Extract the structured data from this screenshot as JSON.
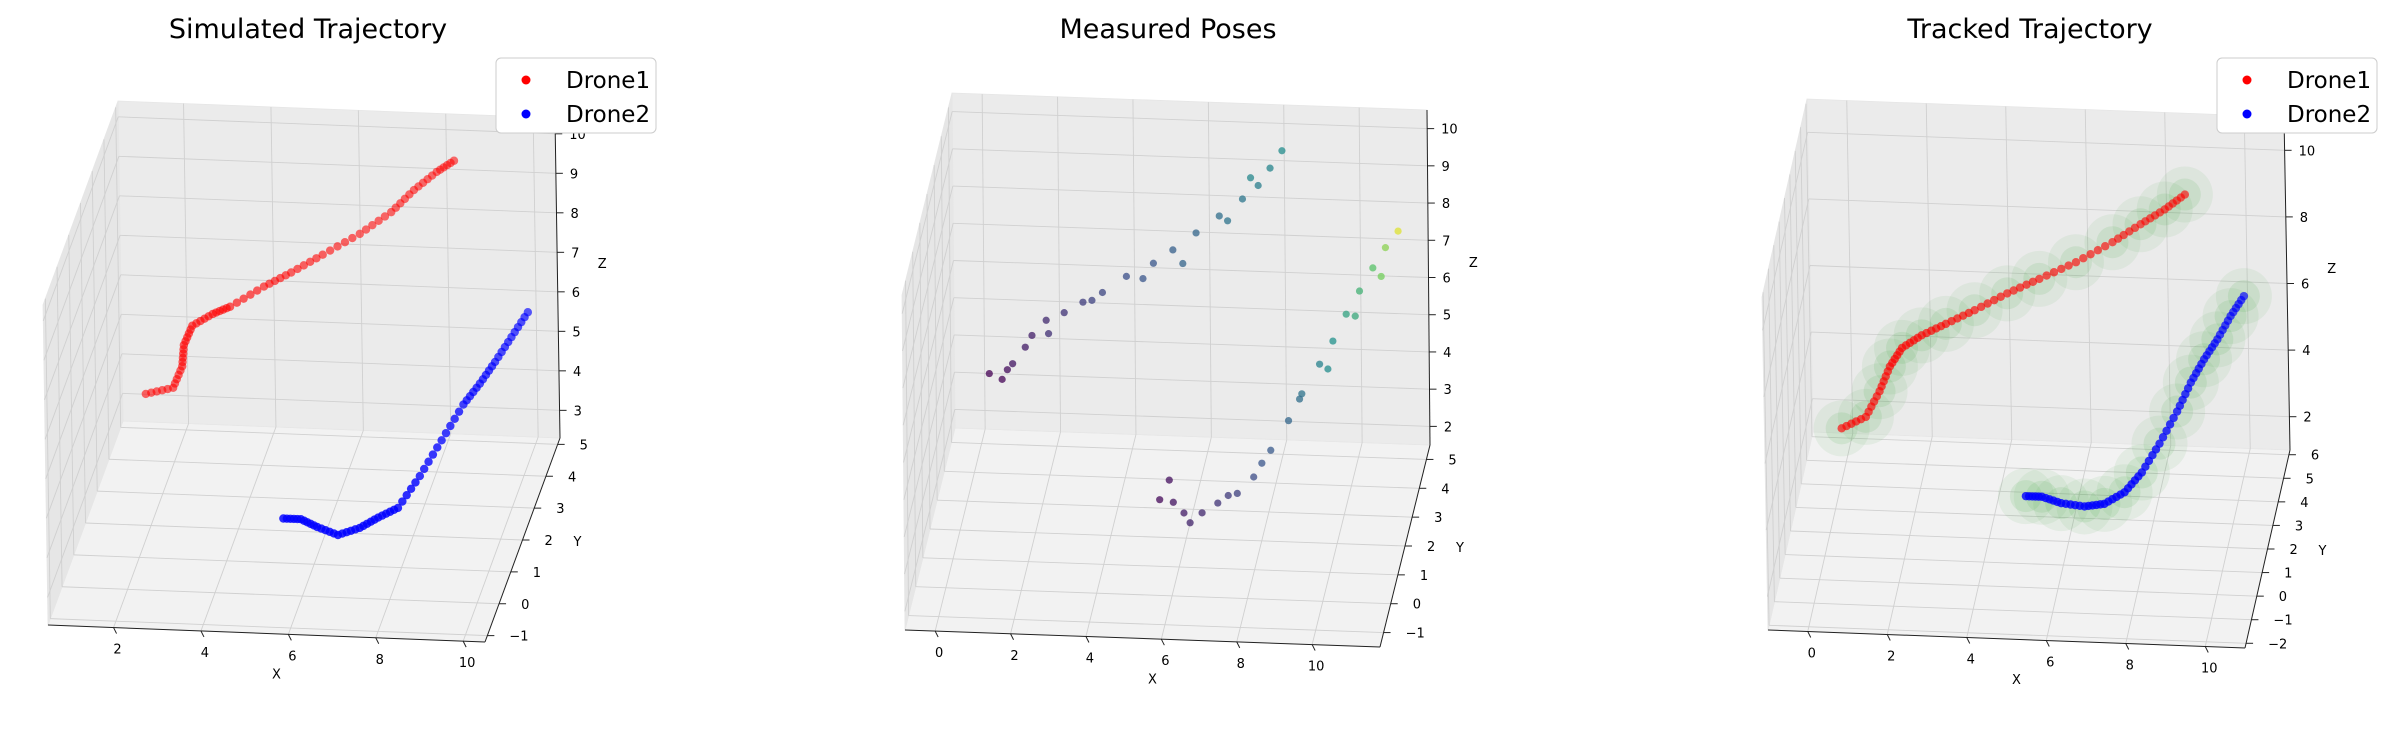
{
  "chart_data": [
    {
      "type": "scatter3d",
      "title": "Simulated Trajectory",
      "xlabel": "X",
      "ylabel": "Y",
      "zlabel": "Z",
      "xlim": [
        0.5,
        10.5
      ],
      "ylim": [
        -1.2,
        5.2
      ],
      "zlim": [
        2.3,
        10.4
      ],
      "xticks": [
        2,
        4,
        6,
        8,
        10
      ],
      "yticks": [
        -1,
        0,
        1,
        2,
        3,
        4,
        5
      ],
      "zticks": [
        3,
        4,
        5,
        6,
        7,
        8,
        9,
        10
      ],
      "legend_position": "top-right",
      "grid": true,
      "series": [
        {
          "name": "Drone1",
          "color": "#ff0000",
          "x": [
            1.2,
            1.8,
            2.1,
            2.2,
            2.4,
            2.9,
            3.3,
            4.0,
            4.6,
            5.3,
            6.1,
            6.8,
            7.3,
            7.8,
            8.2
          ],
          "y": [
            4.6,
            4.7,
            4.4,
            4.2,
            4.2,
            4.1,
            4.1,
            4.4,
            4.5,
            4.6,
            4.8,
            4.9,
            5.0,
            5.1,
            5.1
          ],
          "z": [
            3.5,
            3.6,
            4.4,
            5.1,
            5.6,
            6.0,
            6.2,
            6.5,
            6.8,
            7.2,
            7.6,
            8.1,
            8.6,
            9.0,
            9.3
          ]
        },
        {
          "name": "Drone2",
          "color": "#0000ff",
          "x": [
            5.2,
            5.6,
            6.0,
            6.5,
            7.0,
            7.4,
            7.8,
            8.2,
            8.6,
            9.0,
            9.3,
            9.6,
            9.9,
            10.2
          ],
          "y": [
            1.4,
            1.4,
            1.3,
            1.2,
            1.2,
            1.3,
            1.5,
            1.9,
            2.3,
            2.7,
            3.0,
            3.2,
            3.5,
            3.8
          ],
          "z": [
            3.1,
            3.1,
            3.0,
            2.9,
            3.1,
            3.3,
            3.4,
            3.9,
            4.5,
            5.1,
            5.4,
            5.8,
            6.2,
            6.6
          ]
        }
      ]
    },
    {
      "type": "scatter3d",
      "title": "Measured Poses",
      "xlabel": "X",
      "ylabel": "Y",
      "zlabel": "Z",
      "xlim": [
        -0.8,
        11.8
      ],
      "ylim": [
        -1.5,
        5.5
      ],
      "zlim": [
        1.5,
        10.5
      ],
      "xticks": [
        0,
        2,
        4,
        6,
        8,
        10
      ],
      "yticks": [
        -1,
        0,
        1,
        2,
        3,
        4,
        5
      ],
      "zticks": [
        2,
        3,
        4,
        5,
        6,
        7,
        8,
        9,
        10
      ],
      "grid": true,
      "colormap": "viridis",
      "color_stops": [
        "#440154",
        "#3b528b",
        "#21918c",
        "#5ec962",
        "#fde725"
      ],
      "series": [
        {
          "name": "",
          "x": [
            0.3,
            0.8,
            1.0,
            1.5,
            1.9,
            2.4,
            2.9,
            3.4,
            4.0,
            4.7,
            5.2,
            5.8,
            6.4,
            7.0,
            7.4,
            7.7,
            8.0,
            0.6,
            1.3,
            2.0,
            3.1,
            4.4,
            5.5,
            6.6,
            7.2
          ],
          "y": [
            4.6,
            4.5,
            4.2,
            4.3,
            4.2,
            4.1,
            4.1,
            4.2,
            4.4,
            4.5,
            4.6,
            4.7,
            4.8,
            4.9,
            5.0,
            5.1,
            5.2,
            4.8,
            4.4,
            4.0,
            4.3,
            4.6,
            4.4,
            4.9,
            5.0
          ],
          "z": [
            3.7,
            3.9,
            4.3,
            5.0,
            5.5,
            5.8,
            6.1,
            6.3,
            6.6,
            6.9,
            7.2,
            7.6,
            8.0,
            8.4,
            8.7,
            9.1,
            9.5,
            3.4,
            4.6,
            5.3,
            6.0,
            6.4,
            7.0,
            7.8,
            8.9
          ],
          "t": [
            0.0,
            0.03,
            0.06,
            0.09,
            0.12,
            0.15,
            0.18,
            0.21,
            0.24,
            0.27,
            0.3,
            0.33,
            0.36,
            0.39,
            0.42,
            0.45,
            0.48,
            0.01,
            0.08,
            0.14,
            0.2,
            0.26,
            0.32,
            0.38,
            0.46
          ]
        },
        {
          "name": "",
          "x": [
            5.4,
            5.8,
            6.1,
            6.6,
            7.0,
            7.5,
            7.9,
            8.3,
            8.7,
            9.0,
            9.4,
            9.7,
            10.0,
            10.3,
            10.6,
            10.9,
            11.2,
            5.6,
            6.3,
            7.2,
            8.1,
            8.9,
            9.6,
            10.2,
            10.8
          ],
          "y": [
            1.5,
            1.3,
            1.2,
            1.1,
            1.2,
            1.3,
            1.5,
            1.8,
            2.2,
            2.5,
            2.9,
            3.2,
            3.5,
            3.8,
            4.1,
            4.3,
            4.5,
            1.8,
            1.0,
            1.6,
            1.6,
            2.7,
            3.0,
            3.7,
            4.2
          ],
          "z": [
            2.9,
            3.0,
            2.8,
            2.9,
            3.1,
            3.3,
            3.6,
            4.1,
            4.6,
            5.1,
            5.6,
            6.0,
            6.5,
            6.9,
            7.3,
            7.7,
            8.0,
            3.2,
            2.7,
            3.0,
            3.9,
            4.8,
            5.4,
            6.3,
            7.0
          ],
          "t": [
            0.02,
            0.05,
            0.08,
            0.11,
            0.15,
            0.19,
            0.23,
            0.28,
            0.33,
            0.38,
            0.44,
            0.5,
            0.57,
            0.64,
            0.72,
            0.82,
            0.95,
            0.04,
            0.1,
            0.17,
            0.26,
            0.36,
            0.48,
            0.6,
            0.78
          ]
        }
      ]
    },
    {
      "type": "scatter3d",
      "title": "Tracked Trajectory",
      "xlabel": "X",
      "ylabel": "Y",
      "zlabel": "Z",
      "xlim": [
        -1.0,
        11.0
      ],
      "ylim": [
        -2.2,
        6.2
      ],
      "zlim": [
        1.0,
        11.0
      ],
      "xticks": [
        0,
        2,
        4,
        6,
        8,
        10
      ],
      "yticks": [
        -2,
        -1,
        0,
        1,
        2,
        3,
        4,
        5,
        6
      ],
      "zticks": [
        2,
        4,
        6,
        8,
        10
      ],
      "legend_position": "top-right",
      "grid": true,
      "uncertainty_color": "#2ca02c",
      "series": [
        {
          "name": "Drone1",
          "color": "#ff0000",
          "x": [
            0.0,
            0.6,
            1.0,
            1.3,
            1.6,
            2.1,
            2.7,
            3.4,
            4.2,
            5.0,
            5.9,
            6.8,
            7.5,
            8.1,
            8.6
          ],
          "y": [
            4.3,
            4.4,
            4.1,
            3.9,
            4.0,
            4.0,
            4.1,
            4.3,
            4.5,
            4.6,
            4.8,
            5.0,
            5.1,
            5.2,
            5.3
          ],
          "z": [
            2.5,
            2.8,
            3.8,
            4.7,
            5.2,
            5.6,
            5.9,
            6.2,
            6.6,
            7.0,
            7.4,
            7.9,
            8.4,
            8.8,
            9.2
          ]
        },
        {
          "name": "Drone2",
          "color": "#0000ff",
          "x": [
            5.0,
            5.4,
            5.9,
            6.5,
            7.0,
            7.5,
            7.9,
            8.3,
            8.7,
            9.0,
            9.3,
            9.6,
            9.9,
            10.2
          ],
          "y": [
            1.6,
            1.6,
            1.5,
            1.4,
            1.4,
            1.5,
            1.8,
            2.2,
            2.6,
            3.0,
            3.3,
            3.6,
            3.9,
            4.2
          ],
          "z": [
            2.6,
            2.6,
            2.5,
            2.5,
            2.6,
            2.9,
            3.3,
            3.9,
            4.6,
            5.2,
            5.7,
            6.1,
            6.6,
            7.0
          ]
        }
      ]
    }
  ]
}
